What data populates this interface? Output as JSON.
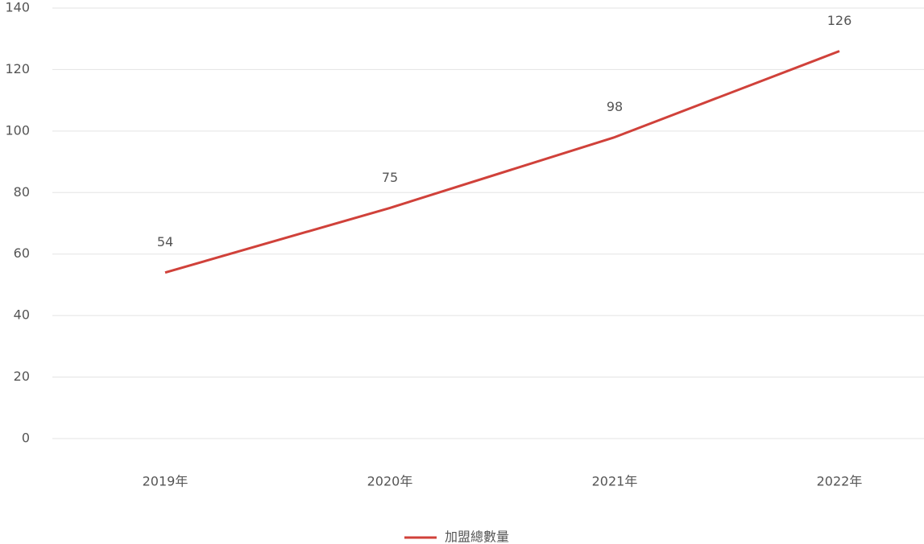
{
  "chart_data": {
    "type": "line",
    "categories": [
      "2019年",
      "2020年",
      "2021年",
      "2022年"
    ],
    "series": [
      {
        "name": "加盟總數量",
        "color": "#d0413a",
        "values": [
          54,
          75,
          98,
          126
        ]
      }
    ],
    "ylim": [
      0,
      140
    ],
    "yticks": [
      0,
      20,
      40,
      60,
      80,
      100,
      120,
      140
    ],
    "grid": true,
    "legend": "bottom"
  }
}
